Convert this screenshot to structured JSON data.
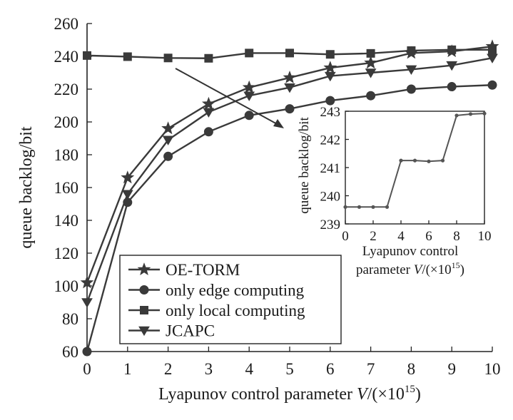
{
  "chart_data": {
    "type": "line",
    "x": [
      0,
      1,
      2,
      3,
      4,
      5,
      6,
      7,
      8,
      9,
      10
    ],
    "xlabel_prefix": "Lyapunov control parameter ",
    "xlabel_var": "V",
    "xlabel_unit_open": "/(×10",
    "xlabel_exp": "15",
    "xlabel_unit_close": ")",
    "ylabel": "queue backlog/bit",
    "xlim": [
      0,
      10
    ],
    "ylim": [
      60,
      260
    ],
    "xticks": [
      "0",
      "1",
      "2",
      "3",
      "4",
      "5",
      "6",
      "7",
      "8",
      "9",
      "10"
    ],
    "yticks": [
      "60",
      "80",
      "100",
      "120",
      "140",
      "160",
      "180",
      "200",
      "220",
      "240",
      "260"
    ],
    "grid": false,
    "legend_position": "bottom-left",
    "series": [
      {
        "name": "OE-TORM",
        "marker": "star",
        "values": [
          102,
          166,
          196,
          211,
          221,
          227,
          233,
          236,
          242,
          243,
          246
        ]
      },
      {
        "name": "only edge computing",
        "marker": "circle",
        "values": [
          60,
          151,
          179,
          194,
          204,
          208,
          213,
          216,
          220,
          221.5,
          222.5
        ]
      },
      {
        "name": "only local computing",
        "marker": "square",
        "values": [
          240.5,
          239.8,
          239,
          238.8,
          242,
          242,
          241.2,
          241.8,
          243.5,
          244,
          244
        ]
      },
      {
        "name": "JCAPC",
        "marker": "triangle-down",
        "values": [
          90,
          156,
          189,
          206,
          216,
          221,
          228,
          230,
          232,
          234.5,
          239
        ]
      }
    ],
    "inset": {
      "ylabel": "queue backlog/bit",
      "xlabel_line1": "Lyapunov control",
      "xlabel_line2_prefix": "parameter ",
      "xlabel_var": "V",
      "xlabel_unit_open": "/(×10",
      "xlabel_exp": "15",
      "xlabel_unit_close": ")",
      "xlim": [
        0,
        10
      ],
      "ylim": [
        239,
        243
      ],
      "xticks": [
        "0",
        "2",
        "4",
        "6",
        "8",
        "10"
      ],
      "yticks": [
        "239",
        "240",
        "241",
        "242",
        "243"
      ],
      "x": [
        0,
        1,
        2,
        3,
        4,
        5,
        6,
        7,
        8,
        9,
        10
      ],
      "values": [
        239.6,
        239.6,
        239.6,
        239.6,
        241.25,
        241.25,
        241.22,
        241.25,
        242.85,
        242.9,
        242.92
      ]
    }
  }
}
